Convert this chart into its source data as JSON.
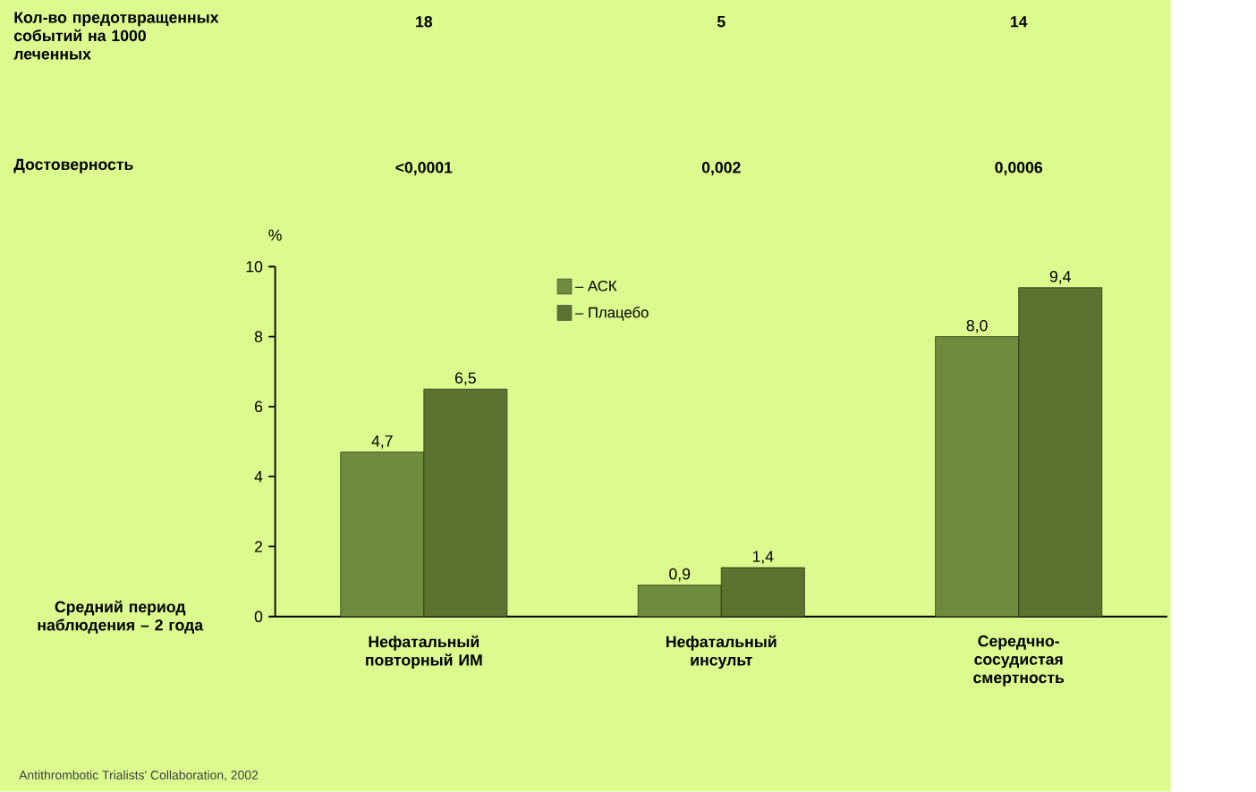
{
  "chart_data": {
    "type": "bar",
    "categories": [
      "Нефатальный повторный ИМ",
      "Нефатальный инсульт",
      "Середчно-сосудистая смертность"
    ],
    "series": [
      {
        "name": "– АСК",
        "color": "#6f8b3d",
        "values": [
          4.7,
          0.9,
          8.0
        ],
        "value_labels": [
          "4,7",
          "0,9",
          "8,0"
        ]
      },
      {
        "name": "– Плацебо",
        "color": "#5b7231",
        "values": [
          6.5,
          1.4,
          9.4
        ],
        "value_labels": [
          "6,5",
          "1,4",
          "9,4"
        ]
      }
    ],
    "ylabel": "%",
    "ylim": [
      0,
      10
    ],
    "yticks": [
      0,
      2,
      4,
      6,
      8,
      10
    ],
    "grid": false,
    "legend": "top",
    "annotations": [
      "Кол-во предотвращенных событий на 1000 леченных",
      "18",
      "5",
      "14",
      "Достоверность",
      "<0,0001",
      "0,002",
      "0,0006",
      "Средний период наблюдения – 2 года",
      "Antithrombotic Trialists' Collaboration, 2002"
    ]
  }
}
